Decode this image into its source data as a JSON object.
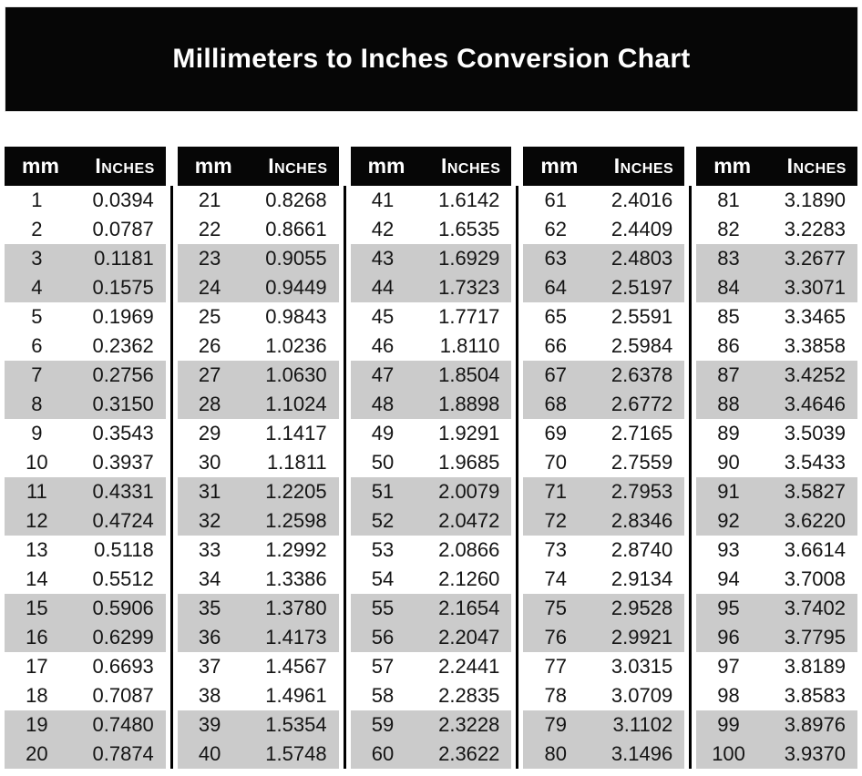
{
  "title": "Millimeters to Inches Conversion Chart",
  "header": {
    "mm": "mm",
    "inches": "Inches"
  },
  "tables": [
    {
      "rows": [
        [
          "1",
          "0.0394"
        ],
        [
          "2",
          "0.0787"
        ],
        [
          "3",
          "0.1181"
        ],
        [
          "4",
          "0.1575"
        ],
        [
          "5",
          "0.1969"
        ],
        [
          "6",
          "0.2362"
        ],
        [
          "7",
          "0.2756"
        ],
        [
          "8",
          "0.3150"
        ],
        [
          "9",
          "0.3543"
        ],
        [
          "10",
          "0.3937"
        ],
        [
          "11",
          "0.4331"
        ],
        [
          "12",
          "0.4724"
        ],
        [
          "13",
          "0.5118"
        ],
        [
          "14",
          "0.5512"
        ],
        [
          "15",
          "0.5906"
        ],
        [
          "16",
          "0.6299"
        ],
        [
          "17",
          "0.6693"
        ],
        [
          "18",
          "0.7087"
        ],
        [
          "19",
          "0.7480"
        ],
        [
          "20",
          "0.7874"
        ]
      ]
    },
    {
      "rows": [
        [
          "21",
          "0.8268"
        ],
        [
          "22",
          "0.8661"
        ],
        [
          "23",
          "0.9055"
        ],
        [
          "24",
          "0.9449"
        ],
        [
          "25",
          "0.9843"
        ],
        [
          "26",
          "1.0236"
        ],
        [
          "27",
          "1.0630"
        ],
        [
          "28",
          "1.1024"
        ],
        [
          "29",
          "1.1417"
        ],
        [
          "30",
          "1.1811"
        ],
        [
          "31",
          "1.2205"
        ],
        [
          "32",
          "1.2598"
        ],
        [
          "33",
          "1.2992"
        ],
        [
          "34",
          "1.3386"
        ],
        [
          "35",
          "1.3780"
        ],
        [
          "36",
          "1.4173"
        ],
        [
          "37",
          "1.4567"
        ],
        [
          "38",
          "1.4961"
        ],
        [
          "39",
          "1.5354"
        ],
        [
          "40",
          "1.5748"
        ]
      ]
    },
    {
      "rows": [
        [
          "41",
          "1.6142"
        ],
        [
          "42",
          "1.6535"
        ],
        [
          "43",
          "1.6929"
        ],
        [
          "44",
          "1.7323"
        ],
        [
          "45",
          "1.7717"
        ],
        [
          "46",
          "1.8110"
        ],
        [
          "47",
          "1.8504"
        ],
        [
          "48",
          "1.8898"
        ],
        [
          "49",
          "1.9291"
        ],
        [
          "50",
          "1.9685"
        ],
        [
          "51",
          "2.0079"
        ],
        [
          "52",
          "2.0472"
        ],
        [
          "53",
          "2.0866"
        ],
        [
          "54",
          "2.1260"
        ],
        [
          "55",
          "2.1654"
        ],
        [
          "56",
          "2.2047"
        ],
        [
          "57",
          "2.2441"
        ],
        [
          "58",
          "2.2835"
        ],
        [
          "59",
          "2.3228"
        ],
        [
          "60",
          "2.3622"
        ]
      ]
    },
    {
      "rows": [
        [
          "61",
          "2.4016"
        ],
        [
          "62",
          "2.4409"
        ],
        [
          "63",
          "2.4803"
        ],
        [
          "64",
          "2.5197"
        ],
        [
          "65",
          "2.5591"
        ],
        [
          "66",
          "2.5984"
        ],
        [
          "67",
          "2.6378"
        ],
        [
          "68",
          "2.6772"
        ],
        [
          "69",
          "2.7165"
        ],
        [
          "70",
          "2.7559"
        ],
        [
          "71",
          "2.7953"
        ],
        [
          "72",
          "2.8346"
        ],
        [
          "73",
          "2.8740"
        ],
        [
          "74",
          "2.9134"
        ],
        [
          "75",
          "2.9528"
        ],
        [
          "76",
          "2.9921"
        ],
        [
          "77",
          "3.0315"
        ],
        [
          "78",
          "3.0709"
        ],
        [
          "79",
          "3.1102"
        ],
        [
          "80",
          "3.1496"
        ]
      ]
    },
    {
      "rows": [
        [
          "81",
          "3.1890"
        ],
        [
          "82",
          "3.2283"
        ],
        [
          "83",
          "3.2677"
        ],
        [
          "84",
          "3.3071"
        ],
        [
          "85",
          "3.3465"
        ],
        [
          "86",
          "3.3858"
        ],
        [
          "87",
          "3.4252"
        ],
        [
          "88",
          "3.4646"
        ],
        [
          "89",
          "3.5039"
        ],
        [
          "90",
          "3.5433"
        ],
        [
          "91",
          "3.5827"
        ],
        [
          "92",
          "3.6220"
        ],
        [
          "93",
          "3.6614"
        ],
        [
          "94",
          "3.7008"
        ],
        [
          "95",
          "3.7402"
        ],
        [
          "96",
          "3.7795"
        ],
        [
          "97",
          "3.8189"
        ],
        [
          "98",
          "3.8583"
        ],
        [
          "99",
          "3.8976"
        ],
        [
          "100",
          "3.9370"
        ]
      ]
    }
  ],
  "colors": {
    "banner": "#060606",
    "stripe": "#cbcbcb",
    "divider": "#000000"
  }
}
